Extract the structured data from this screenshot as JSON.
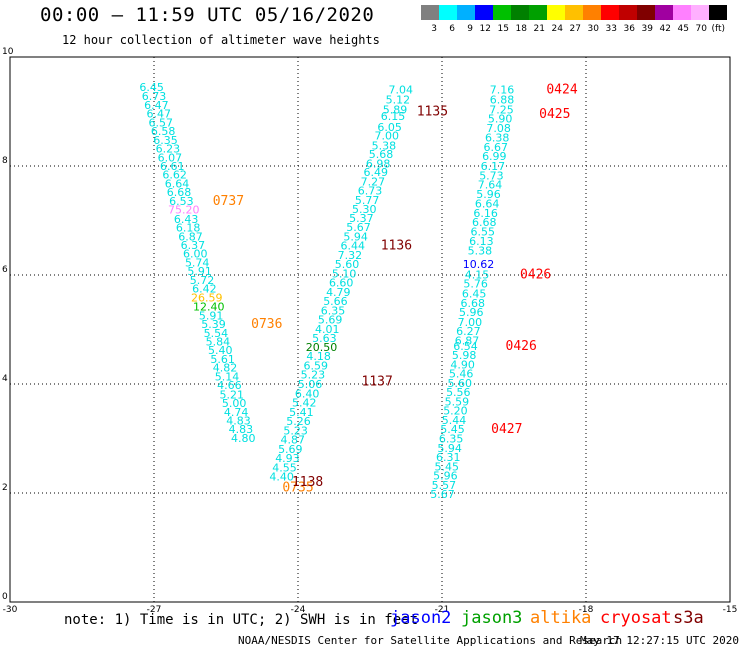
{
  "header": {
    "title": "00:00 – 11:59 UTC 05/16/2020",
    "subtitle": "12 hour collection of altimeter wave heights"
  },
  "colorbar": {
    "colors": [
      "#808080",
      "#00ffff",
      "#00b0ff",
      "#0000ff",
      "#00c000",
      "#008000",
      "#00a000",
      "#ffff00",
      "#ffc000",
      "#ff8000",
      "#ff0000",
      "#c00000",
      "#800000",
      "#a000a0",
      "#ff80ff",
      "#ffb0ff",
      "#000000"
    ],
    "labels": [
      "3",
      "6",
      "9",
      "12",
      "15",
      "18",
      "21",
      "24",
      "27",
      "30",
      "33",
      "36",
      "39",
      "42",
      "45",
      "70",
      "(ft)"
    ]
  },
  "chart_data": {
    "type": "scatter",
    "title": "00:00 – 11:59 UTC 05/16/2020",
    "subtitle": "12 hour collection of altimeter wave heights",
    "xlim": [
      -30,
      -15
    ],
    "ylim": [
      0,
      10
    ],
    "x_ticks": [
      "-30",
      "-27",
      "-24",
      "-21",
      "-18",
      "-15"
    ],
    "y_ticks": [
      "0",
      "2",
      "4",
      "6",
      "8",
      "10"
    ],
    "grid": true,
    "series": [
      {
        "name": "altika",
        "color": "#00e0e0",
        "points": [
          [
            -27.05,
            9.45,
            "6.45"
          ],
          [
            -27.0,
            9.28,
            "6.73"
          ],
          [
            -26.95,
            9.12,
            "6.47"
          ],
          [
            -26.9,
            8.96,
            "6.47"
          ],
          [
            -26.86,
            8.8,
            "6.57"
          ],
          [
            -26.81,
            8.64,
            "6.58"
          ],
          [
            -26.76,
            8.48,
            "6.35"
          ],
          [
            -26.71,
            8.32,
            "6.23"
          ],
          [
            -26.67,
            8.16,
            "6.07"
          ],
          [
            -26.62,
            8.0,
            "6.61"
          ],
          [
            -26.57,
            7.84,
            "6.62"
          ],
          [
            -26.52,
            7.68,
            "6.64"
          ],
          [
            -26.48,
            7.52,
            "6.68"
          ],
          [
            -26.43,
            7.36,
            "6.53"
          ],
          [
            -26.38,
            7.2,
            "75.20"
          ],
          [
            -26.33,
            7.03,
            "6.43"
          ],
          [
            -26.29,
            6.87,
            "6.18"
          ],
          [
            -26.24,
            6.71,
            "6.87"
          ],
          [
            -26.19,
            6.55,
            "6.37"
          ],
          [
            -26.14,
            6.39,
            "6.00"
          ],
          [
            -26.1,
            6.23,
            "5.74"
          ],
          [
            -26.05,
            6.07,
            "5.91"
          ],
          [
            -26.0,
            5.91,
            "5.72"
          ],
          [
            -25.95,
            5.75,
            "6.42"
          ],
          [
            -25.9,
            5.59,
            "26.59"
          ],
          [
            -25.86,
            5.42,
            "12.40"
          ],
          [
            -25.81,
            5.26,
            "5.91"
          ],
          [
            -25.76,
            5.1,
            "5.39"
          ],
          [
            -25.71,
            4.94,
            "5.54"
          ],
          [
            -25.67,
            4.78,
            "5.84"
          ],
          [
            -25.62,
            4.62,
            "5.40"
          ],
          [
            -25.57,
            4.46,
            "5.61"
          ],
          [
            -25.52,
            4.3,
            "4.82"
          ],
          [
            -25.48,
            4.14,
            "5.14"
          ],
          [
            -25.43,
            3.98,
            "4.66"
          ],
          [
            -25.38,
            3.81,
            "5.21"
          ],
          [
            -25.33,
            3.65,
            "5.00"
          ],
          [
            -25.29,
            3.49,
            "4.74"
          ],
          [
            -25.24,
            3.33,
            "4.83"
          ],
          [
            -25.19,
            3.17,
            "4.83"
          ],
          [
            -25.14,
            3.01,
            "4.80"
          ]
        ]
      },
      {
        "name": "cryosat",
        "color": "#00e0e0",
        "points": [
          [
            -21.86,
            9.4,
            "7.04"
          ],
          [
            -21.92,
            9.22,
            "5.12"
          ],
          [
            -21.98,
            9.04,
            "5.89"
          ],
          [
            -22.02,
            8.92,
            "6.15"
          ],
          [
            -22.09,
            8.72,
            "6.05"
          ],
          [
            -22.15,
            8.56,
            "7.00"
          ],
          [
            -22.21,
            8.38,
            "5.38"
          ],
          [
            -22.27,
            8.22,
            "5.68"
          ],
          [
            -22.33,
            8.05,
            "6.98"
          ],
          [
            -22.38,
            7.89,
            "6.49"
          ],
          [
            -22.44,
            7.72,
            "7.27"
          ],
          [
            -22.5,
            7.55,
            "6.73"
          ],
          [
            -22.56,
            7.38,
            "5.77"
          ],
          [
            -22.62,
            7.21,
            "5.30"
          ],
          [
            -22.68,
            7.05,
            "5.37"
          ],
          [
            -22.74,
            6.88,
            "5.67"
          ],
          [
            -22.8,
            6.71,
            "5.94"
          ],
          [
            -22.86,
            6.54,
            "6.44"
          ],
          [
            -22.92,
            6.37,
            "7.32"
          ],
          [
            -22.98,
            6.2,
            "5.60"
          ],
          [
            -23.04,
            6.03,
            "5.10"
          ],
          [
            -23.1,
            5.86,
            "6.60"
          ],
          [
            -23.16,
            5.69,
            "4.79"
          ],
          [
            -23.22,
            5.52,
            "5.66"
          ],
          [
            -23.27,
            5.35,
            "6.35"
          ],
          [
            -23.33,
            5.18,
            "5.69"
          ],
          [
            -23.39,
            5.01,
            "4.01"
          ],
          [
            -23.45,
            4.84,
            "5.63"
          ],
          [
            -23.51,
            4.68,
            "20.50"
          ],
          [
            -23.57,
            4.51,
            "4.18"
          ],
          [
            -23.63,
            4.34,
            "6.59"
          ],
          [
            -23.69,
            4.17,
            "5.23"
          ],
          [
            -23.75,
            4.0,
            "5.06"
          ],
          [
            -23.81,
            3.83,
            "6.40"
          ],
          [
            -23.87,
            3.66,
            "5.42"
          ],
          [
            -23.93,
            3.49,
            "5.41"
          ],
          [
            -23.99,
            3.32,
            "5.26"
          ],
          [
            -24.05,
            3.15,
            "5.23"
          ],
          [
            -24.11,
            2.98,
            "4.87"
          ],
          [
            -24.16,
            2.81,
            "5.69"
          ],
          [
            -24.22,
            2.64,
            "4.93"
          ],
          [
            -24.28,
            2.47,
            "4.55"
          ],
          [
            -24.34,
            2.3,
            "4.40"
          ]
        ]
      },
      {
        "name": "s3a",
        "color": "#00e0e0",
        "points": [
          [
            -19.75,
            9.4,
            "7.16"
          ],
          [
            -19.75,
            9.22,
            "6.88"
          ],
          [
            -19.76,
            9.04,
            "7.25"
          ],
          [
            -19.79,
            8.87,
            "5.90"
          ],
          [
            -19.82,
            8.7,
            "7.08"
          ],
          [
            -19.85,
            8.52,
            "6.38"
          ],
          [
            -19.88,
            8.35,
            "6.67"
          ],
          [
            -19.91,
            8.18,
            "6.99"
          ],
          [
            -19.94,
            8.0,
            "6.17"
          ],
          [
            -19.97,
            7.83,
            "5.73"
          ],
          [
            -20.0,
            7.66,
            "7.64"
          ],
          [
            -20.03,
            7.49,
            "5.96"
          ],
          [
            -20.06,
            7.31,
            "6.64"
          ],
          [
            -20.09,
            7.14,
            "6.16"
          ],
          [
            -20.12,
            6.97,
            "6.68"
          ],
          [
            -20.15,
            6.8,
            "6.55"
          ],
          [
            -20.18,
            6.62,
            "6.13"
          ],
          [
            -20.21,
            6.45,
            "5.38"
          ],
          [
            -20.24,
            6.2,
            "10.62"
          ],
          [
            -20.27,
            6.01,
            "4.15"
          ],
          [
            -20.3,
            5.84,
            "5.76"
          ],
          [
            -20.33,
            5.66,
            "6.45"
          ],
          [
            -20.36,
            5.49,
            "6.68"
          ],
          [
            -20.39,
            5.32,
            "5.96"
          ],
          [
            -20.42,
            5.14,
            "7.00"
          ],
          [
            -20.45,
            4.97,
            "6.27"
          ],
          [
            -20.48,
            4.8,
            "6.87"
          ],
          [
            -20.51,
            4.7,
            "6.54"
          ],
          [
            -20.54,
            4.53,
            "5.98"
          ],
          [
            -20.57,
            4.36,
            "4.90"
          ],
          [
            -20.6,
            4.19,
            "5.46"
          ],
          [
            -20.63,
            4.02,
            "5.60"
          ],
          [
            -20.66,
            3.85,
            "5.56"
          ],
          [
            -20.69,
            3.68,
            "5.59"
          ],
          [
            -20.72,
            3.51,
            "5.20"
          ],
          [
            -20.75,
            3.34,
            "5.44"
          ],
          [
            -20.78,
            3.17,
            "5.45"
          ],
          [
            -20.81,
            3.0,
            "6.35"
          ],
          [
            -20.84,
            2.83,
            "5.94"
          ],
          [
            -20.87,
            2.66,
            "6.31"
          ],
          [
            -20.9,
            2.49,
            "5.45"
          ],
          [
            -20.93,
            2.32,
            "5.96"
          ],
          [
            -20.96,
            2.15,
            "5.57"
          ],
          [
            -20.99,
            1.98,
            "5.67"
          ]
        ]
      }
    ],
    "time_labels": [
      {
        "text": "0737",
        "x": -25.45,
        "y": 7.36,
        "color": "#ff8000"
      },
      {
        "text": "0736",
        "x": -24.65,
        "y": 5.1,
        "color": "#ff8000"
      },
      {
        "text": "0735",
        "x": -24.0,
        "y": 2.1,
        "color": "#ff8000"
      },
      {
        "text": "1135",
        "x": -21.2,
        "y": 9.0,
        "color": "#800000"
      },
      {
        "text": "1136",
        "x": -21.95,
        "y": 6.54,
        "color": "#800000"
      },
      {
        "text": "1137",
        "x": -22.35,
        "y": 4.05,
        "color": "#800000"
      },
      {
        "text": "1138",
        "x": -23.8,
        "y": 2.2,
        "color": "#800000"
      },
      {
        "text": "0424",
        "x": -18.5,
        "y": 9.4,
        "color": "#ff0000"
      },
      {
        "text": "0425",
        "x": -18.65,
        "y": 8.95,
        "color": "#ff0000"
      },
      {
        "text": "0426",
        "x": -19.05,
        "y": 6.01,
        "color": "#ff0000"
      },
      {
        "text": "0426",
        "x": -19.35,
        "y": 4.7,
        "color": "#ff0000"
      },
      {
        "text": "0427",
        "x": -19.65,
        "y": 3.17,
        "color": "#ff0000"
      }
    ]
  },
  "note": "note: 1) Time is in UTC; 2) SWH is in feet",
  "satellites": [
    {
      "label": "jason2",
      "color": "#0000ff"
    },
    {
      "label": "jason3",
      "color": "#00a000"
    },
    {
      "label": "altika",
      "color": "#ff8000"
    },
    {
      "label": "cryosat",
      "color": "#ff0000"
    },
    {
      "label": "s3a",
      "color": "#800000"
    }
  ],
  "footer": {
    "credit": "NOAA/NESDIS Center for Satellite Applications and Research",
    "timestamp": "May 17 12:27:15 UTC 2020"
  }
}
